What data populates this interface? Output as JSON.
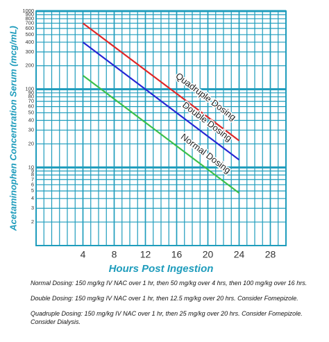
{
  "chart_data": {
    "type": "line",
    "x_label": "Hours Post Ingestion",
    "y_label": "Acetaminophen Concentration Serum (mcg/mL)",
    "x": [
      4,
      24
    ],
    "series": [
      {
        "name": "Quadruple Dosing",
        "color": "#e02626",
        "values": [
          700,
          22
        ]
      },
      {
        "name": "Double Dosing",
        "color": "#2626d4",
        "values": [
          400,
          12.5
        ]
      },
      {
        "name": "Normal Dosing",
        "color": "#3cc04a",
        "values": [
          150,
          4.7
        ]
      }
    ],
    "xlim": [
      -2,
      30
    ],
    "xticks": [
      4,
      8,
      12,
      16,
      20,
      24,
      28
    ],
    "x_grid_step": 1,
    "ylim": [
      1,
      1000
    ],
    "log_y": true,
    "yticks": [
      1000,
      900,
      800,
      700,
      600,
      500,
      400,
      300,
      200,
      100,
      90,
      80,
      70,
      60,
      50,
      40,
      30,
      20,
      10,
      9,
      8,
      7,
      6,
      5,
      4,
      3,
      2
    ],
    "grid": true,
    "grid_color": "#1e9cbc",
    "notes": [
      "Normal Dosing: 150 mg/kg IV NAC over 1 hr, then 50 mg/kg over 4 hrs, then 100 mg/kg over 16 hrs.",
      "Double Dosing: 150 mg/kg IV NAC over 1 hr, then 12.5 mg/kg over 20 hrs. Consider Fomepizole.",
      "Quadruple Dosing: 150 mg/kg IV NAC over 1 hr, then 25 mg/kg over 20 hrs. Consider Fomepizole. Consider Dialysis."
    ]
  }
}
